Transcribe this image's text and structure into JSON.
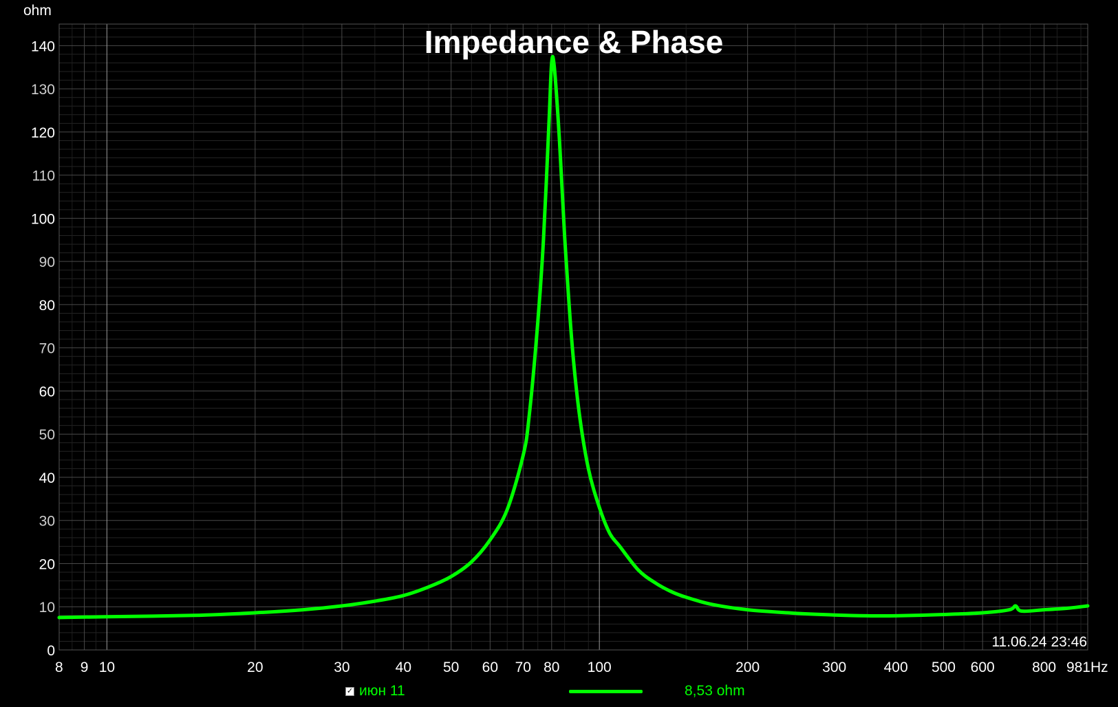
{
  "chart_data": {
    "type": "line",
    "title": "Impedance & Phase",
    "ylabel": "ohm",
    "xunit": "Hz",
    "xscale": "log",
    "xlim": [
      8,
      981
    ],
    "ylim": [
      0,
      145
    ],
    "grid": true,
    "timestamp": "11.06.24 23:46",
    "x_ticks": [
      "8",
      "9",
      "10",
      "20",
      "30",
      "40",
      "50",
      "60",
      "70",
      "80",
      "100",
      "200",
      "300",
      "400",
      "500",
      "600",
      "800",
      "981"
    ],
    "y_ticks": [
      "0",
      "10",
      "20",
      "30",
      "40",
      "50",
      "60",
      "70",
      "80",
      "90",
      "100",
      "110",
      "120",
      "130",
      "140"
    ],
    "series": [
      {
        "name": "июн 11",
        "color": "#00ff00",
        "readout": "8,53 ohm",
        "x": [
          8,
          10,
          15,
          20,
          25,
          30,
          35,
          40,
          45,
          50,
          55,
          60,
          65,
          70,
          72,
          75,
          77,
          79,
          80,
          81,
          83,
          85,
          88,
          91,
          95,
          100,
          105,
          110,
          120,
          130,
          140,
          150,
          170,
          200,
          250,
          300,
          350,
          400,
          500,
          600,
          680,
          700,
          720,
          800,
          900,
          981
        ],
        "y": [
          7.5,
          7.7,
          8.0,
          8.6,
          9.3,
          10.2,
          11.3,
          12.6,
          14.6,
          17.0,
          20.4,
          25.5,
          32.5,
          45,
          54,
          76,
          95,
          122,
          136,
          135,
          118,
          96,
          71,
          55,
          42,
          33,
          27,
          24,
          18.5,
          15.5,
          13.5,
          12.2,
          10.5,
          9.3,
          8.5,
          8.1,
          7.9,
          7.9,
          8.2,
          8.6,
          9.3,
          10.2,
          9.0,
          9.3,
          9.7,
          10.2
        ]
      }
    ]
  }
}
